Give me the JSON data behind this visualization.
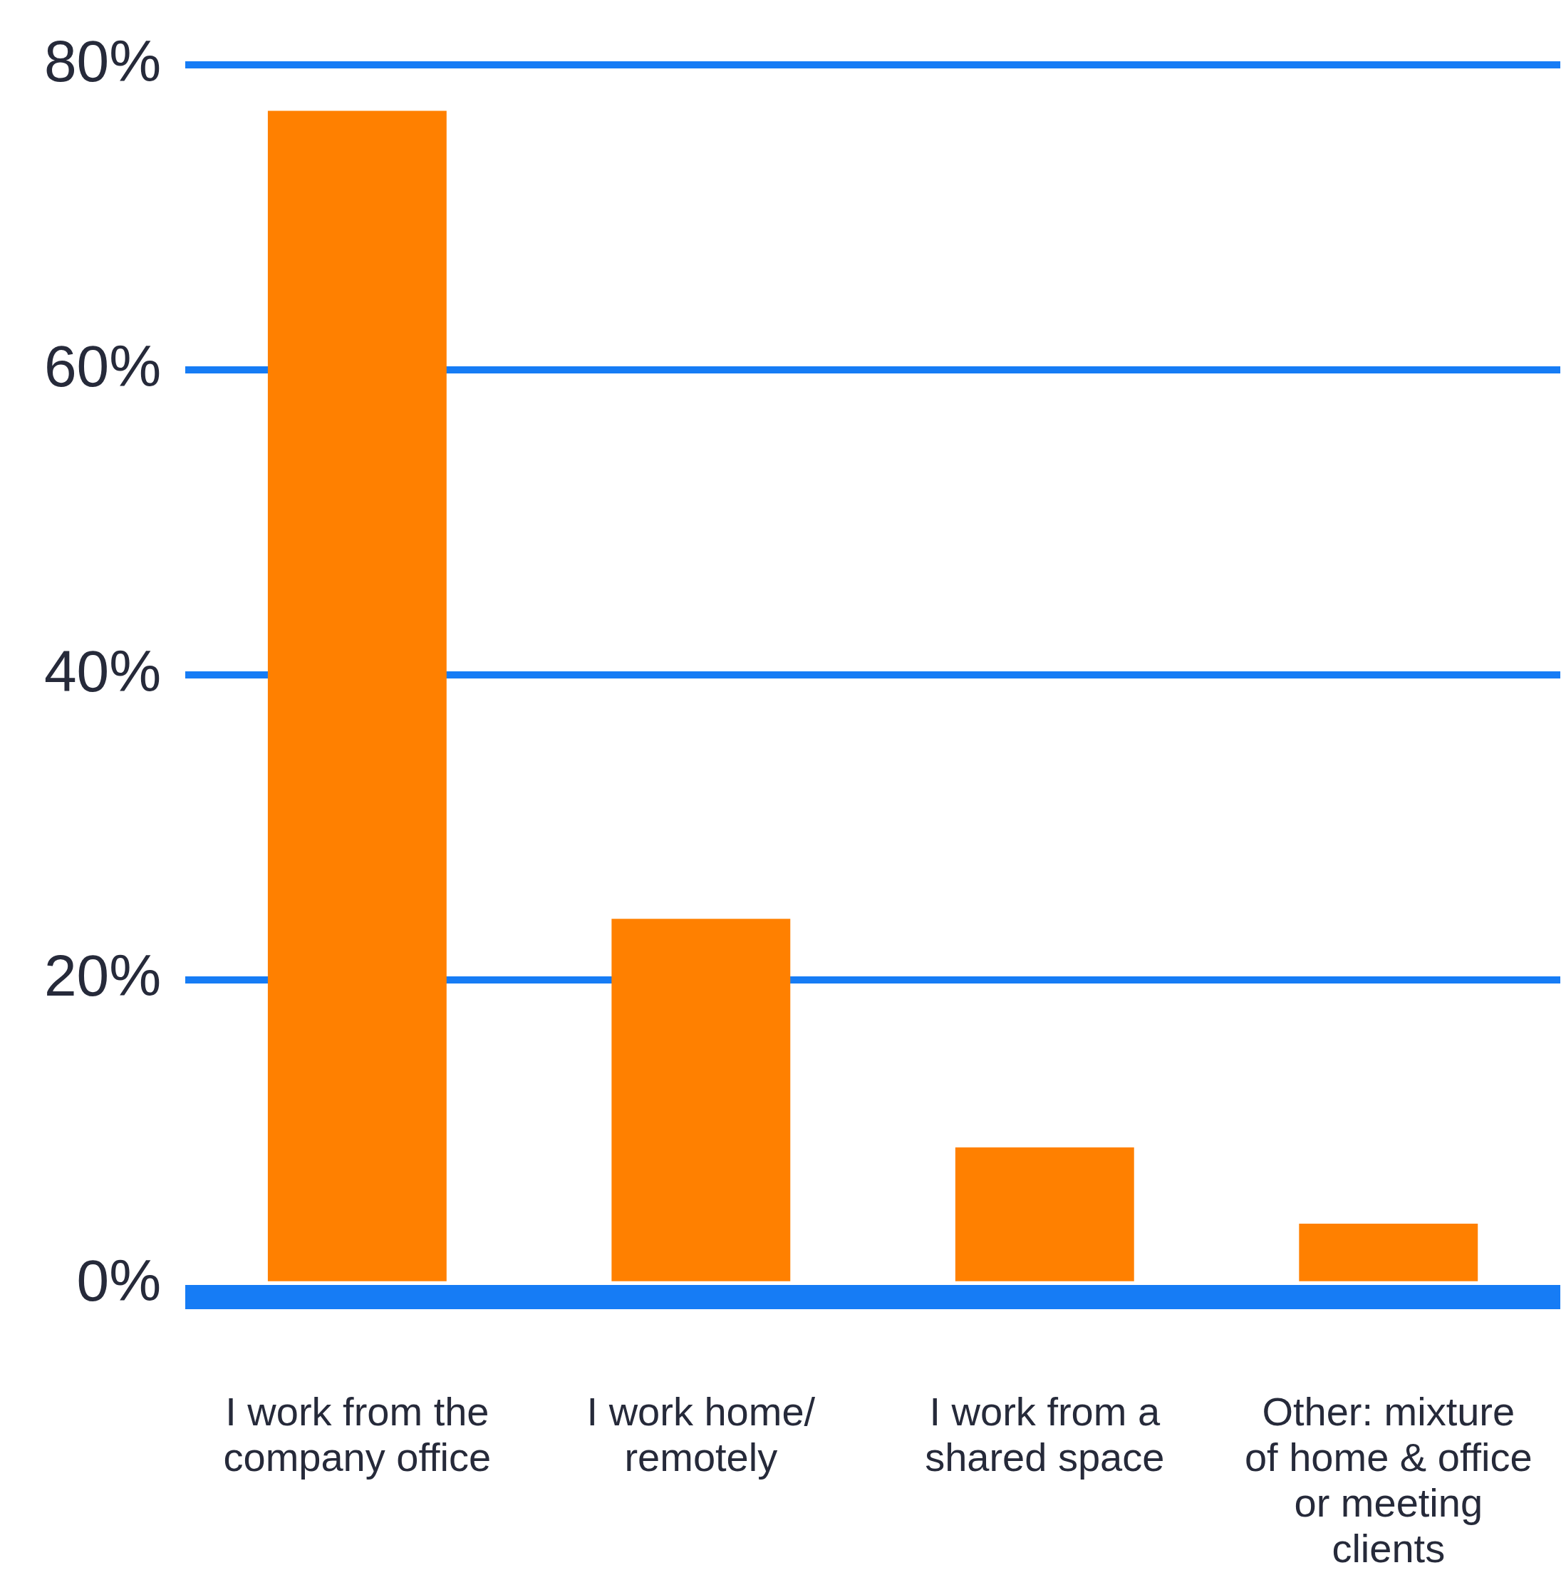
{
  "chart_data": {
    "type": "bar",
    "categories": [
      "I work from the company office",
      "I work home/remotely",
      "I work from a shared space",
      "Other: mixture of home & office or meeting clients"
    ],
    "values": [
      77,
      24,
      9,
      4
    ],
    "color": "#ff8000",
    "ylim": [
      0,
      80
    ],
    "yticks": [
      {
        "value": 0,
        "label": "0%"
      },
      {
        "value": 20,
        "label": "20%"
      },
      {
        "value": 40,
        "label": "40%"
      },
      {
        "value": 60,
        "label": "60%"
      },
      {
        "value": 80,
        "label": "80%"
      }
    ],
    "grid": "y"
  }
}
